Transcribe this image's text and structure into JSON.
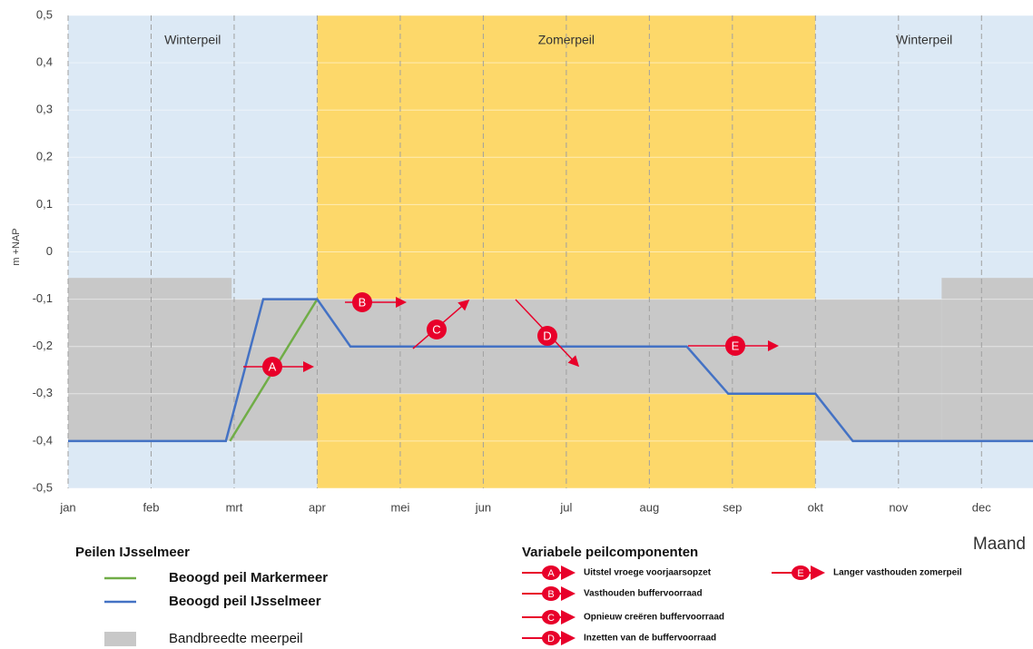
{
  "chart_data": {
    "type": "line",
    "y_label": "m +NAP",
    "x_label": "Maand",
    "xlim": [
      0,
      11.62
    ],
    "ylim": [
      -0.5,
      0.5
    ],
    "grid": true,
    "xticks": [
      {
        "value": 0,
        "label": "jan"
      },
      {
        "value": 1,
        "label": "feb"
      },
      {
        "value": 2,
        "label": "mrt"
      },
      {
        "value": 3,
        "label": "apr"
      },
      {
        "value": 4,
        "label": "mei"
      },
      {
        "value": 5,
        "label": "jun"
      },
      {
        "value": 6,
        "label": "jul"
      },
      {
        "value": 7,
        "label": "aug"
      },
      {
        "value": 8,
        "label": "sep"
      },
      {
        "value": 9,
        "label": "okt"
      },
      {
        "value": 10,
        "label": "nov"
      },
      {
        "value": 11,
        "label": "dec"
      }
    ],
    "yticks": [
      {
        "value": 0.5,
        "label": "0,5"
      },
      {
        "value": 0.4,
        "label": "0,4"
      },
      {
        "value": 0.3,
        "label": "0,3"
      },
      {
        "value": 0.2,
        "label": "0,2"
      },
      {
        "value": 0.1,
        "label": "0,1"
      },
      0,
      {
        "value": -0.1,
        "label": "-0,1"
      },
      {
        "value": -0.2,
        "label": "-0,2"
      },
      {
        "value": -0.3,
        "label": "-0,3"
      },
      {
        "value": -0.4,
        "label": "-0,4"
      },
      {
        "value": -0.5,
        "label": "-0,5"
      }
    ],
    "seasons": [
      {
        "name": "Winterpeil",
        "start": 0,
        "end": 3,
        "color": "#dce9f5"
      },
      {
        "name": "Zomerpeil",
        "start": 3,
        "end": 9,
        "color": "#fdd86a"
      },
      {
        "name": "Winterpeil",
        "start": 9,
        "end": 11.62,
        "color": "#dce9f5"
      }
    ],
    "band": {
      "name": "Bandbreedte meerpeil",
      "color": "#c8c8c8",
      "segments": [
        {
          "start": 0,
          "end": 1.97,
          "low": -0.4,
          "high": -0.055
        },
        {
          "start": 1.97,
          "end": 3,
          "low": -0.4,
          "high": -0.1
        },
        {
          "start": 3,
          "end": 9,
          "low": -0.3,
          "high": -0.1
        },
        {
          "start": 9,
          "end": 10.52,
          "low": -0.4,
          "high": -0.1
        },
        {
          "start": 10.52,
          "end": 11.62,
          "low": -0.4,
          "high": -0.055
        }
      ]
    },
    "series": [
      {
        "name": "Beoogd peil Markermeer",
        "color": "#70ad47",
        "x": [
          1.95,
          3
        ],
        "values": [
          -0.4,
          -0.1
        ]
      },
      {
        "name": "Beoogd peil IJsselmeer",
        "color": "#4472c4",
        "x": [
          0,
          1.9,
          2.35,
          3,
          3.4,
          7.45,
          7.95,
          9,
          9.45,
          11.62
        ],
        "values": [
          -0.4,
          -0.4,
          -0.1,
          -0.1,
          -0.2,
          -0.2,
          -0.3,
          -0.3,
          -0.4,
          -0.4
        ]
      }
    ],
    "legend_title": "Peilen IJsselmeer",
    "components_title": "Variabele peilcomponenten",
    "components": [
      {
        "letter": "A",
        "text": "Uitstel vroege voorjaarsopzet"
      },
      {
        "letter": "B",
        "text": "Vasthouden buffervoorraad"
      },
      {
        "letter": "C",
        "text": "Opnieuw creëren buffervoorraad"
      },
      {
        "letter": "D",
        "text": "Inzetten van de buffervoorraad"
      },
      {
        "letter": "E",
        "text": "Langer vasthouden zomerpeil"
      }
    ]
  }
}
